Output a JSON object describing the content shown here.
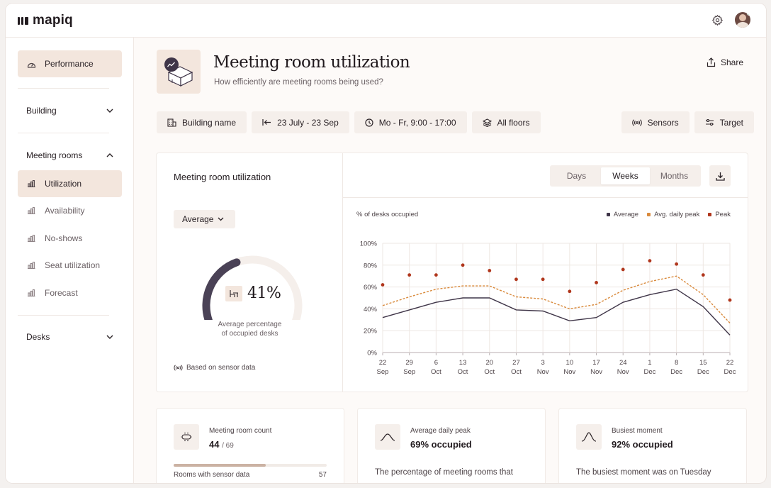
{
  "app": {
    "logo": "mapiq"
  },
  "sidebar": {
    "performance": "Performance",
    "building": "Building",
    "meeting_rooms": "Meeting rooms",
    "sub_items": [
      "Utilization",
      "Availability",
      "No-shows",
      "Seat utilization",
      "Forecast"
    ],
    "desks": "Desks"
  },
  "header": {
    "title": "Meeting room utilization",
    "subtitle": "How efficiently are meeting rooms being used?",
    "share": "Share"
  },
  "filters": {
    "building": "Building name",
    "dates": "23 July - 23 Sep",
    "hours": "Mo - Fr, 9:00 - 17:00",
    "floors": "All floors",
    "sensors": "Sensors",
    "target": "Target"
  },
  "util_card": {
    "title": "Meeting room utilization",
    "select": "Average",
    "gauge_value": "41%",
    "gauge_fraction": 0.41,
    "gauge_caption_1": "Average percentage",
    "gauge_caption_2": "of occupied desks",
    "sensor_note": "Based on sensor data",
    "periods": [
      "Days",
      "Weeks",
      "Months"
    ],
    "active_period": "Weeks"
  },
  "colors": {
    "average": "#3f3548",
    "avg_peak": "#d98a3c",
    "peak": "#b0361c"
  },
  "chart_data": {
    "type": "line",
    "ylabel": "% of desks occupied",
    "ylim": [
      0,
      100
    ],
    "yticks": [
      "0%",
      "20%",
      "40%",
      "60%",
      "80%",
      "100%"
    ],
    "yticks_values": [
      0,
      20,
      40,
      60,
      80,
      100
    ],
    "categories": [
      [
        "22",
        "Sep"
      ],
      [
        "29",
        "Sep"
      ],
      [
        "6",
        "Oct"
      ],
      [
        "13",
        "Oct"
      ],
      [
        "20",
        "Oct"
      ],
      [
        "27",
        "Oct"
      ],
      [
        "3",
        "Nov"
      ],
      [
        "10",
        "Nov"
      ],
      [
        "17",
        "Nov"
      ],
      [
        "24",
        "Nov"
      ],
      [
        "1",
        "Dec"
      ],
      [
        "8",
        "Dec"
      ],
      [
        "15",
        "Dec"
      ],
      [
        "22",
        "Dec"
      ]
    ],
    "legend": [
      "Average",
      "Avg. daily peak",
      "Peak"
    ],
    "legend_position": "top-right",
    "series": [
      {
        "name": "Average",
        "values": [
          32,
          39,
          46,
          50,
          50,
          39,
          38,
          29,
          32,
          46,
          53,
          58,
          42,
          16
        ]
      },
      {
        "name": "Avg. daily peak",
        "values": [
          43,
          51,
          58,
          61,
          61,
          51,
          49,
          40,
          44,
          57,
          65,
          70,
          53,
          27
        ]
      },
      {
        "name": "Peak",
        "values": [
          62,
          71,
          71,
          80,
          75,
          67,
          67,
          56,
          64,
          76,
          84,
          81,
          71,
          48
        ],
        "extra_x": -0.3
      }
    ]
  },
  "kpis": {
    "count": {
      "label": "Meeting room count",
      "value": "44",
      "total": "/ 69",
      "bar_label": "Rooms with sensor data",
      "bar_value": "57",
      "bar_fraction": 0.6
    },
    "avg_peak": {
      "label": "Average daily peak",
      "value": "69% occupied",
      "desc": "The percentage of meeting rooms that"
    },
    "busiest": {
      "label": "Busiest moment",
      "value": "92% occupied",
      "desc": "The busiest moment was on Tuesday"
    }
  }
}
